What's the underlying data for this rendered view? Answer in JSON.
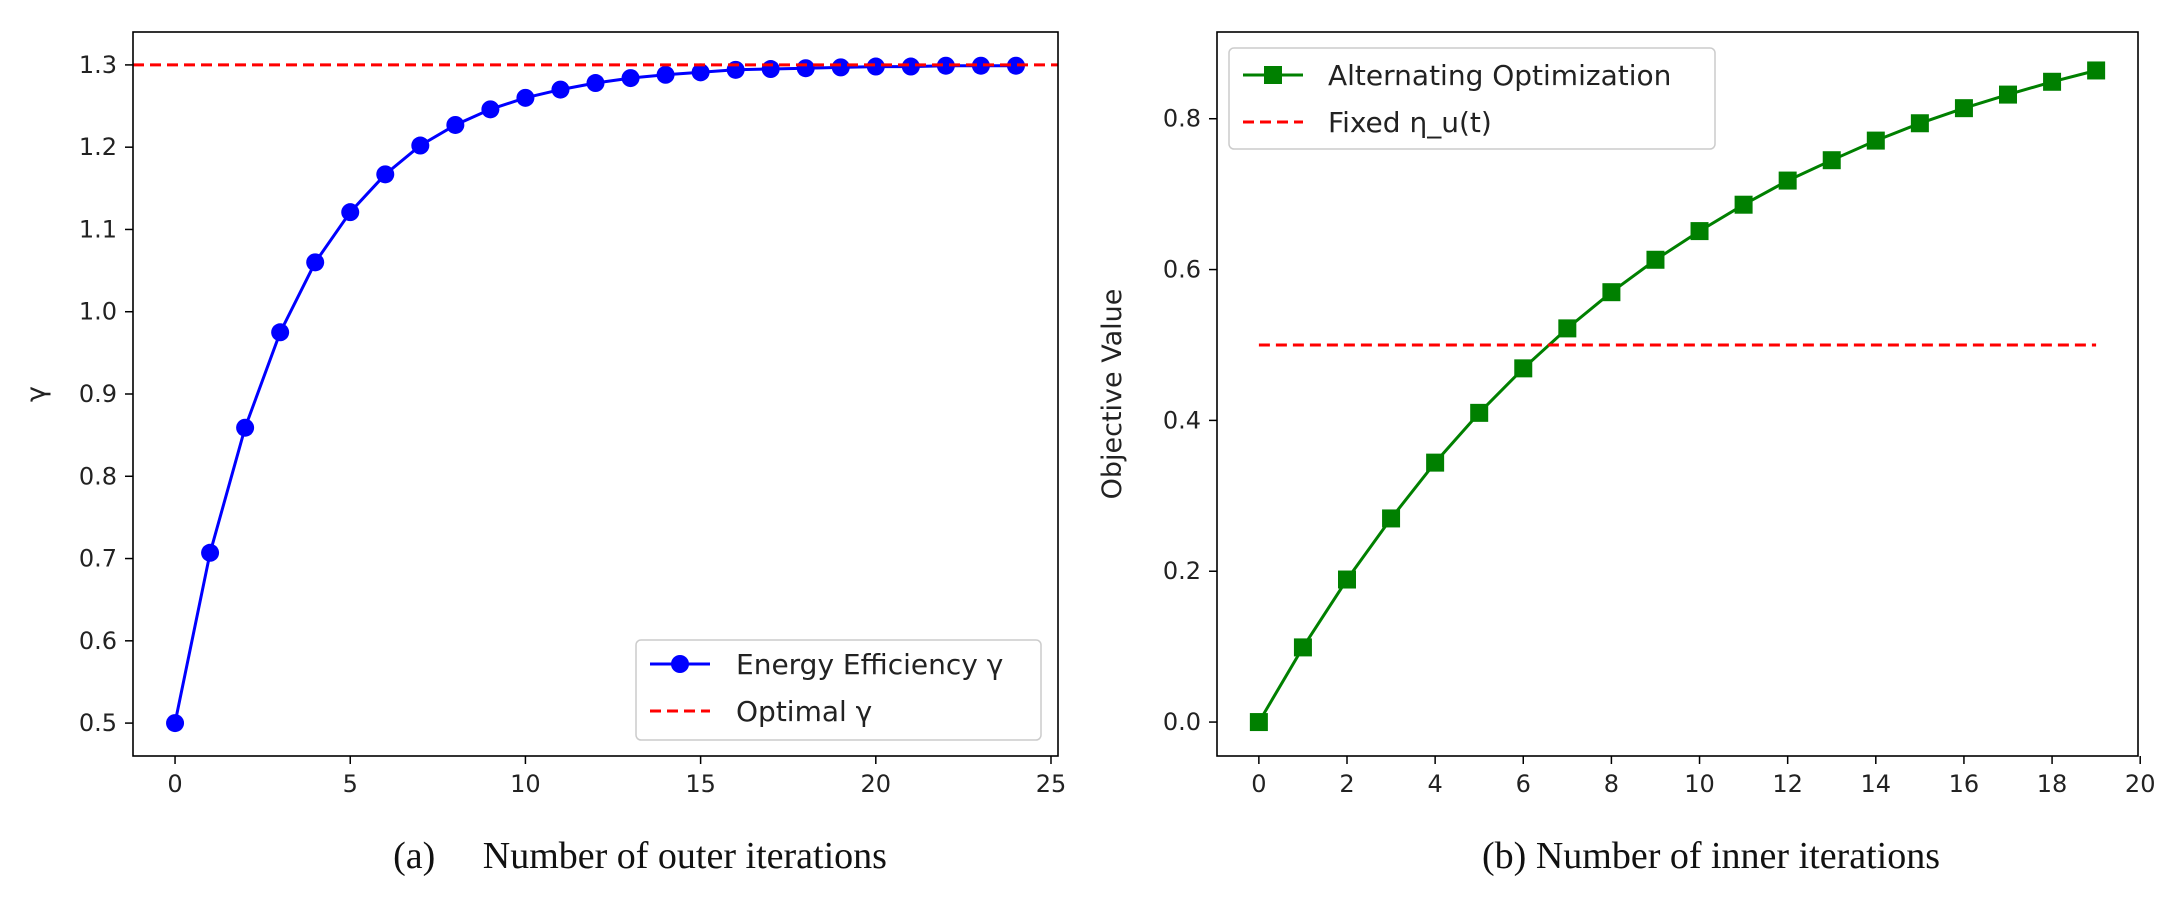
{
  "chart_data": [
    {
      "id": "a",
      "type": "line",
      "caption": "(a)     Number of outer iterations",
      "xlabel": "",
      "ylabel": "γ",
      "xlim": [
        -1.2,
        25.2
      ],
      "ylim": [
        0.46,
        1.34
      ],
      "xticks": [
        0,
        5,
        10,
        15,
        20,
        25
      ],
      "xtick_labels": [
        "0",
        "5",
        "10",
        "15",
        "20",
        "25"
      ],
      "yticks": [
        0.5,
        0.6,
        0.7,
        0.8,
        0.9,
        1.0,
        1.1,
        1.2,
        1.3
      ],
      "ytick_labels": [
        "0.5",
        "0.6",
        "0.7",
        "0.8",
        "0.9",
        "1.0",
        "1.1",
        "1.2",
        "1.3"
      ],
      "legend_position": "lower-right",
      "series": [
        {
          "name": "Energy Efficiency γ",
          "color": "#0000ff",
          "marker": "circle",
          "linestyle": "solid",
          "x": [
            0,
            1,
            2,
            3,
            4,
            5,
            6,
            7,
            8,
            9,
            10,
            11,
            12,
            13,
            14,
            15,
            16,
            17,
            18,
            19,
            20,
            21,
            22,
            23,
            24
          ],
          "y": [
            0.5,
            0.707,
            0.859,
            0.975,
            1.06,
            1.121,
            1.167,
            1.202,
            1.227,
            1.246,
            1.26,
            1.27,
            1.278,
            1.284,
            1.288,
            1.291,
            1.294,
            1.295,
            1.296,
            1.297,
            1.298,
            1.298,
            1.299,
            1.299,
            1.299
          ]
        },
        {
          "name": "Optimal γ",
          "color": "#ff0000",
          "marker": "none",
          "linestyle": "dashed",
          "x": [
            -1.2,
            25.2
          ],
          "y": [
            1.3,
            1.3
          ]
        }
      ]
    },
    {
      "id": "b",
      "type": "line",
      "caption": "(b) Number of inner iterations",
      "xlabel": "",
      "ylabel": "Objective Value",
      "xlim": [
        -0.95,
        19.95
      ],
      "ylim": [
        -0.045,
        0.915
      ],
      "xticks": [
        0,
        2,
        4,
        6,
        8,
        10,
        12,
        14,
        16,
        18,
        20
      ],
      "xtick_labels": [
        "0",
        "2",
        "4",
        "6",
        "8",
        "10",
        "12",
        "14",
        "16",
        "18",
        "20"
      ],
      "yticks": [
        0.0,
        0.2,
        0.4,
        0.6,
        0.8
      ],
      "ytick_labels": [
        "0.0",
        "0.2",
        "0.4",
        "0.6",
        "0.8"
      ],
      "legend_position": "top-left",
      "series": [
        {
          "name": "Alternating Optimization",
          "color": "#008000",
          "marker": "square",
          "linestyle": "solid",
          "x": [
            0,
            1,
            2,
            3,
            4,
            5,
            6,
            7,
            8,
            9,
            10,
            11,
            12,
            13,
            14,
            15,
            16,
            17,
            18,
            19
          ],
          "y": [
            0.0,
            0.099,
            0.189,
            0.27,
            0.344,
            0.41,
            0.469,
            0.522,
            0.57,
            0.613,
            0.651,
            0.686,
            0.718,
            0.745,
            0.771,
            0.794,
            0.814,
            0.832,
            0.849,
            0.864
          ]
        },
        {
          "name": "Fixed η_u(t)",
          "color": "#ff0000",
          "marker": "none",
          "linestyle": "dashed",
          "x": [
            0,
            19
          ],
          "y": [
            0.5,
            0.5
          ]
        }
      ]
    }
  ]
}
